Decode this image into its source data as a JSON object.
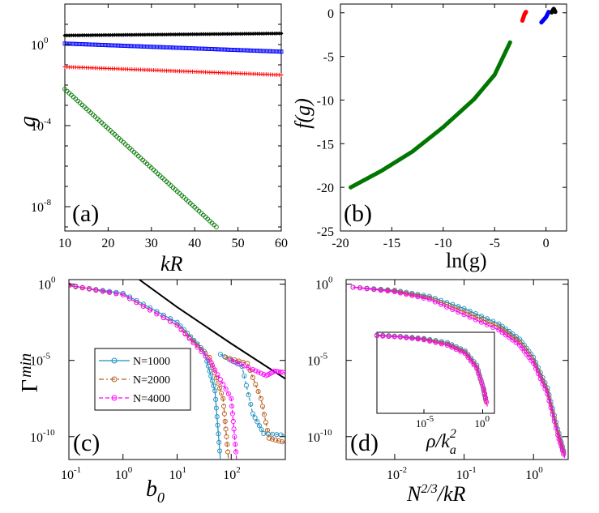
{
  "chart_data": [
    {
      "panel": "a",
      "type": "scatter",
      "panel_label": "(a)",
      "xlabel": "kR",
      "ylabel": "g",
      "xlim": [
        10,
        60
      ],
      "ylim_log10": [
        -9.2,
        2
      ],
      "y_scale": "log",
      "xticks": [
        "10",
        "20",
        "30",
        "40",
        "50",
        "60"
      ],
      "yticks": [
        {
          "base": "10",
          "exp": "0"
        },
        {
          "base": "10",
          "exp": "-4"
        },
        {
          "base": "10",
          "exp": "-8"
        }
      ],
      "series": [
        {
          "name": "black",
          "color": "#000000",
          "marker": "diamond",
          "x_range": [
            10,
            60
          ],
          "log10_y": [
            0.45,
            0.55
          ]
        },
        {
          "name": "blue",
          "color": "#0000ff",
          "marker": "square",
          "x_range": [
            10,
            60
          ],
          "log10_y": [
            0.05,
            -0.35
          ]
        },
        {
          "name": "red",
          "color": "#ff0000",
          "marker": "plus",
          "x_range": [
            10,
            60
          ],
          "log10_y": [
            -1.1,
            -1.5
          ]
        },
        {
          "name": "green",
          "color": "#007700",
          "marker": "circle",
          "x_range": [
            10,
            45
          ],
          "log10_y": [
            -2.2,
            -9.0
          ]
        }
      ]
    },
    {
      "panel": "b",
      "type": "scatter",
      "panel_label": "(b)",
      "xlabel": "ln(g)",
      "ylabel": "f(g)",
      "xlim": [
        -20,
        2
      ],
      "ylim": [
        -25,
        1
      ],
      "xticks": [
        "-20",
        "-15",
        "-10",
        "-5",
        "0"
      ],
      "yticks": [
        "0",
        "-5",
        "-10",
        "-15",
        "-20",
        "-25"
      ],
      "series": [
        {
          "name": "green",
          "color": "#007700",
          "points": [
            [
              -19,
              -20
            ],
            [
              -16,
              -18.1
            ],
            [
              -13,
              -15.9
            ],
            [
              -10,
              -13.1
            ],
            [
              -7,
              -9.9
            ],
            [
              -5,
              -7.1
            ],
            [
              -3.5,
              -3.4
            ]
          ]
        },
        {
          "name": "red",
          "color": "#ff0000",
          "points": [
            [
              -2.3,
              -0.9
            ],
            [
              -2.1,
              -0.2
            ],
            [
              -1.95,
              0.1
            ]
          ]
        },
        {
          "name": "blue",
          "color": "#0000ff",
          "points": [
            [
              -0.45,
              -1.1
            ],
            [
              0.0,
              -0.5
            ],
            [
              0.25,
              0.1
            ]
          ]
        },
        {
          "name": "black",
          "color": "#000000",
          "points": [
            [
              0.55,
              0.05
            ],
            [
              0.75,
              0.45
            ],
            [
              0.9,
              0.1
            ]
          ]
        }
      ]
    },
    {
      "panel": "c",
      "type": "line",
      "panel_label": "(c)",
      "xlabel": "b0",
      "ylabel": "Γmin",
      "x_scale": "log",
      "y_scale": "log",
      "xlim_log10": [
        -1,
        3
      ],
      "ylim_log10": [
        -11.5,
        0.3
      ],
      "xticks": [
        {
          "base": "10",
          "exp": "-1"
        },
        {
          "base": "10",
          "exp": "0"
        },
        {
          "base": "10",
          "exp": "1"
        },
        {
          "base": "10",
          "exp": "2"
        }
      ],
      "yticks": [
        {
          "base": "10",
          "exp": "0"
        },
        {
          "base": "10",
          "exp": "-5"
        },
        {
          "base": "10",
          "exp": "-10"
        }
      ],
      "legend": {
        "position": "center-left",
        "entries": [
          "N=1000",
          "N=2000",
          "N=4000"
        ]
      },
      "series": [
        {
          "name": "N=1000",
          "color": "#1f8fbf",
          "marker": "circle",
          "log10_points": [
            [
              -1,
              -0.1
            ],
            [
              0,
              -0.6
            ],
            [
              1,
              -2.5
            ],
            [
              1.5,
              -4.4
            ],
            [
              1.7,
              -7.0
            ],
            [
              1.8,
              -11.5
            ]
          ]
        },
        {
          "name": "N=2000",
          "color": "#b85c1e",
          "marker": "circle",
          "log10_points": [
            [
              -1,
              -0.1
            ],
            [
              0,
              -0.7
            ],
            [
              1,
              -2.7
            ],
            [
              1.6,
              -4.8
            ],
            [
              1.85,
              -7.5
            ],
            [
              1.95,
              -11.5
            ]
          ]
        },
        {
          "name": "N=4000",
          "color": "#ff00ff",
          "marker": "circle",
          "log10_points": [
            [
              -1,
              -0.05
            ],
            [
              0,
              -0.7
            ],
            [
              1,
              -2.7
            ],
            [
              1.6,
              -5.0
            ],
            [
              2.0,
              -7.5
            ],
            [
              2.1,
              -11.5
            ]
          ]
        },
        {
          "name": "reference",
          "color": "#000000",
          "log10_points": [
            [
              0.3,
              0.3
            ],
            [
              1,
              -1.5
            ],
            [
              2,
              -3.9
            ],
            [
              3,
              -6.2
            ]
          ]
        }
      ]
    },
    {
      "panel": "d",
      "type": "line",
      "panel_label": "(d)",
      "xlabel": "N2/3/kR",
      "ylabel": "",
      "x_scale": "log",
      "y_scale": "log",
      "xlim_log10": [
        -2.7,
        0.5
      ],
      "ylim_log10": [
        -11.5,
        0.3
      ],
      "xticks": [
        {
          "base": "10",
          "exp": "-2"
        },
        {
          "base": "10",
          "exp": "-1"
        },
        {
          "base": "10",
          "exp": "0"
        }
      ],
      "yticks": [
        {
          "base": "10",
          "exp": "0"
        },
        {
          "base": "10",
          "exp": "-5"
        },
        {
          "base": "10",
          "exp": "-10"
        }
      ],
      "series": [
        {
          "name": "N=1000",
          "color": "#1f8fbf",
          "log10_points": [
            [
              -2.6,
              -0.2
            ],
            [
              -2.0,
              -0.4
            ],
            [
              -1.5,
              -0.8
            ],
            [
              -1.0,
              -1.6
            ],
            [
              -0.5,
              -2.6
            ],
            [
              -0.2,
              -3.6
            ],
            [
              0.0,
              -4.8
            ],
            [
              0.2,
              -6.8
            ],
            [
              0.35,
              -9.5
            ],
            [
              0.45,
              -11.2
            ]
          ]
        },
        {
          "name": "N=2000",
          "color": "#b85c1e",
          "log10_points": [
            [
              -2.6,
              -0.2
            ],
            [
              -2.0,
              -0.45
            ],
            [
              -1.5,
              -0.9
            ],
            [
              -1.0,
              -1.8
            ],
            [
              -0.5,
              -2.8
            ],
            [
              -0.2,
              -3.8
            ],
            [
              0.0,
              -5.0
            ],
            [
              0.2,
              -7.0
            ],
            [
              0.35,
              -9.7
            ],
            [
              0.45,
              -11.3
            ]
          ]
        },
        {
          "name": "N=4000",
          "color": "#ff00ff",
          "log10_points": [
            [
              -2.6,
              -0.2
            ],
            [
              -2.0,
              -0.5
            ],
            [
              -1.5,
              -1.0
            ],
            [
              -1.0,
              -2.0
            ],
            [
              -0.5,
              -3.0
            ],
            [
              -0.2,
              -4.0
            ],
            [
              0.0,
              -5.2
            ],
            [
              0.2,
              -7.2
            ],
            [
              0.35,
              -9.9
            ],
            [
              0.45,
              -11.4
            ]
          ]
        }
      ],
      "inset": {
        "xlabel": "ρ/ka2",
        "xticks": [
          {
            "base": "10",
            "exp": "-5"
          },
          {
            "base": "10",
            "exp": "0"
          }
        ],
        "xlim_log10": [
          -9,
          1
        ],
        "ylim_log10": [
          -11.5,
          0.3
        ]
      }
    }
  ]
}
